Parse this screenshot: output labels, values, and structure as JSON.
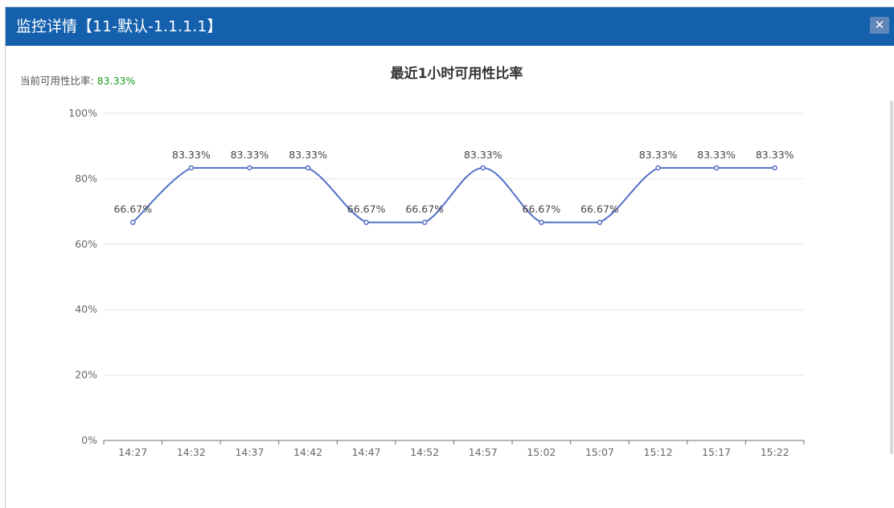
{
  "dialog": {
    "title": "监控详情【11-默认-1.1.1.1】",
    "close_icon": "close-icon",
    "close_label": "✕"
  },
  "availability": {
    "label": "当前可用性比率:",
    "value": "83.33%"
  },
  "colors": {
    "header": "#1460ad",
    "line": "#5470c6",
    "value_green": "#1b9a1b"
  },
  "chart_data": {
    "type": "line",
    "title": "最近1小时可用性比率",
    "smooth": true,
    "categories": [
      "14:27",
      "14:32",
      "14:37",
      "14:42",
      "14:47",
      "14:52",
      "14:57",
      "15:02",
      "15:07",
      "15:12",
      "15:17",
      "15:22"
    ],
    "values": [
      66.67,
      83.33,
      83.33,
      83.33,
      66.67,
      66.67,
      83.33,
      66.67,
      66.67,
      83.33,
      83.33,
      83.33
    ],
    "data_labels": [
      "66.67%",
      "83.33%",
      "83.33%",
      "83.33%",
      "66.67%",
      "66.67%",
      "83.33%",
      "66.67%",
      "66.67%",
      "83.33%",
      "83.33%",
      "83.33%"
    ],
    "ylim": [
      0,
      100
    ],
    "yticks": [
      0,
      20,
      40,
      60,
      80,
      100
    ],
    "ytick_labels": [
      "0%",
      "20%",
      "40%",
      "60%",
      "80%",
      "100%"
    ],
    "xlabel": "",
    "ylabel": "",
    "grid": true,
    "legend": "none"
  }
}
